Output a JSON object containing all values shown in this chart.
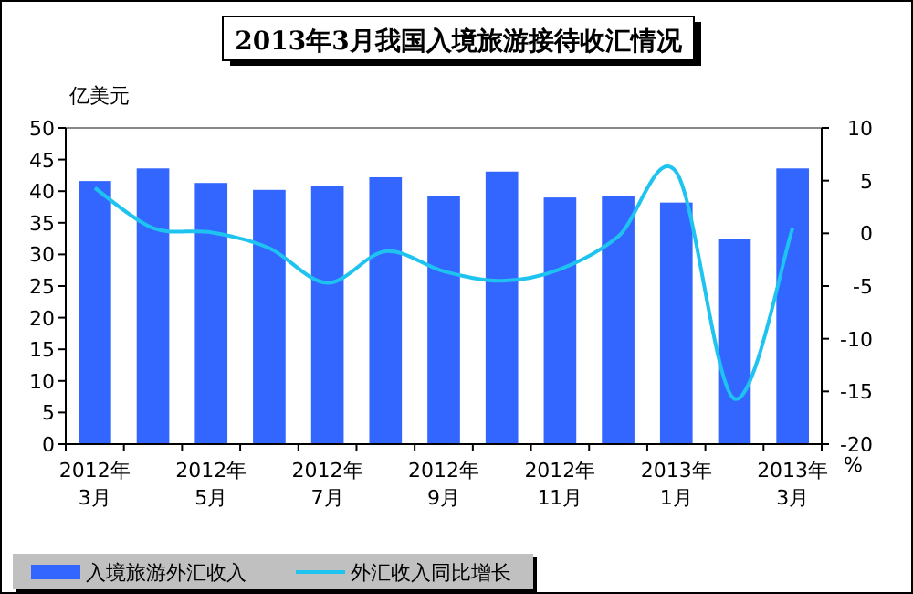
{
  "chart_data": {
    "type": "bar",
    "title": "2013年3月我国入境旅游接待收汇情况",
    "ylabel": "亿美元",
    "y2label": "%",
    "categories": [
      "2012年\n3月",
      null,
      "2012年\n5月",
      null,
      "2012年\n7月",
      null,
      "2012年\n9月",
      null,
      "2012年\n11月",
      null,
      "2013年\n1月",
      null,
      "2013年\n3月"
    ],
    "series": [
      {
        "name": "入境旅游外汇收入",
        "color": "#3366ff",
        "values": [
          41.6,
          43.6,
          41.3,
          40.2,
          40.8,
          42.2,
          39.3,
          43.1,
          39.0,
          39.3,
          38.2,
          32.4,
          43.6
        ]
      },
      {
        "name": "外汇收入同比增长",
        "type": "line",
        "axis": "y2",
        "color": "#1ec3f0",
        "values": [
          4.3,
          0.5,
          0.1,
          -1.4,
          -4.7,
          -1.7,
          -3.6,
          -4.5,
          -3.4,
          -0.3,
          5.8,
          -15.7,
          0.5
        ]
      }
    ],
    "ylim": [
      0,
      50
    ],
    "yticks": [
      0,
      5,
      10,
      15,
      20,
      25,
      30,
      35,
      40,
      45,
      50
    ],
    "y2lim": [
      -20,
      10
    ],
    "y2ticks": [
      -20,
      -15,
      -10,
      -5,
      0,
      5,
      10
    ],
    "legend": "bottom left"
  }
}
